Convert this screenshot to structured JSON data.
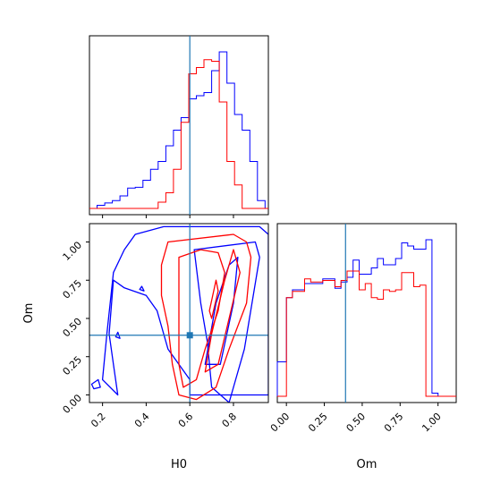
{
  "chart_data": [
    {
      "type": "histogram",
      "panel": "H0-marginal",
      "xlim": [
        0.14,
        0.96
      ],
      "truth": 0.6,
      "bin_edges": [
        0.14,
        0.175,
        0.21,
        0.245,
        0.28,
        0.315,
        0.35,
        0.385,
        0.42,
        0.455,
        0.49,
        0.525,
        0.56,
        0.595,
        0.63,
        0.665,
        0.7,
        0.735,
        0.77,
        0.805,
        0.84,
        0.875,
        0.91,
        0.945,
        0.96
      ],
      "series": [
        {
          "color": "#0000ff",
          "counts": [
            0,
            0.02,
            0.035,
            0.05,
            0.08,
            0.13,
            0.135,
            0.18,
            0.25,
            0.3,
            0.4,
            0.5,
            0.58,
            0.7,
            0.72,
            0.74,
            0.88,
            1.0,
            0.8,
            0.6,
            0.5,
            0.3,
            0.05,
            0.0
          ]
        },
        {
          "color": "#ff0000",
          "counts": [
            0,
            0,
            0,
            0,
            0,
            0,
            0,
            0,
            0,
            0.04,
            0.1,
            0.25,
            0.55,
            0.86,
            0.9,
            0.95,
            0.94,
            0.68,
            0.3,
            0.15,
            0,
            0,
            0,
            0
          ]
        }
      ]
    },
    {
      "type": "contour",
      "panel": "H0-Om-joint",
      "xlim": [
        0.14,
        0.96
      ],
      "ylim": [
        -0.05,
        1.12
      ],
      "x_ticks": [
        "0.2",
        "0.4",
        "0.6",
        "0.8"
      ],
      "y_ticks": [
        "0.00",
        "0.25",
        "0.50",
        "0.75",
        "1.00"
      ],
      "xlabel": "H0",
      "ylabel": "Om",
      "truth": {
        "H0": 0.6,
        "Om": 0.39
      },
      "series": [
        {
          "color": "#0000ff",
          "contours": [
            [
              [
                0.35,
                1.05
              ],
              [
                0.48,
                1.1
              ],
              [
                0.92,
                1.1
              ],
              [
                0.96,
                1.05
              ],
              [
                0.96,
                0.0
              ],
              [
                0.6,
                0.0
              ],
              [
                0.6,
                0.1
              ],
              [
                0.5,
                0.3
              ],
              [
                0.45,
                0.55
              ],
              [
                0.4,
                0.65
              ],
              [
                0.3,
                0.7
              ],
              [
                0.25,
                0.75
              ],
              [
                0.23,
                0.4
              ],
              [
                0.25,
                0.2
              ],
              [
                0.27,
                0.0
              ],
              [
                0.2,
                0.1
              ],
              [
                0.22,
                0.4
              ],
              [
                0.25,
                0.8
              ],
              [
                0.3,
                0.95
              ],
              [
                0.35,
                1.05
              ]
            ],
            [
              [
                0.62,
                0.95
              ],
              [
                0.9,
                1.0
              ],
              [
                0.92,
                0.9
              ],
              [
                0.85,
                0.3
              ],
              [
                0.78,
                -0.05
              ],
              [
                0.7,
                0.05
              ],
              [
                0.68,
                0.35
              ],
              [
                0.65,
                0.6
              ],
              [
                0.62,
                0.95
              ]
            ],
            [
              [
                0.67,
                0.2
              ],
              [
                0.72,
                0.6
              ],
              [
                0.78,
                0.85
              ],
              [
                0.82,
                0.9
              ],
              [
                0.8,
                0.6
              ],
              [
                0.74,
                0.2
              ],
              [
                0.67,
                0.2
              ]
            ],
            [
              [
                0.15,
                0.07
              ],
              [
                0.18,
                0.1
              ],
              [
                0.19,
                0.05
              ],
              [
                0.16,
                0.04
              ],
              [
                0.15,
                0.07
              ]
            ],
            [
              [
                0.26,
                0.38
              ],
              [
                0.27,
                0.41
              ],
              [
                0.28,
                0.37
              ],
              [
                0.26,
                0.38
              ]
            ],
            [
              [
                0.37,
                0.69
              ],
              [
                0.38,
                0.71
              ],
              [
                0.39,
                0.68
              ],
              [
                0.37,
                0.69
              ]
            ]
          ]
        },
        {
          "color": "#ff0000",
          "contours": [
            [
              [
                0.5,
                1.0
              ],
              [
                0.8,
                1.05
              ],
              [
                0.86,
                1.0
              ],
              [
                0.88,
                0.9
              ],
              [
                0.86,
                0.6
              ],
              [
                0.78,
                0.3
              ],
              [
                0.72,
                0.05
              ],
              [
                0.63,
                -0.03
              ],
              [
                0.55,
                0.0
              ],
              [
                0.52,
                0.2
              ],
              [
                0.5,
                0.45
              ],
              [
                0.47,
                0.65
              ],
              [
                0.47,
                0.85
              ],
              [
                0.5,
                1.0
              ]
            ],
            [
              [
                0.55,
                0.9
              ],
              [
                0.65,
                0.95
              ],
              [
                0.73,
                0.93
              ],
              [
                0.76,
                0.8
              ],
              [
                0.73,
                0.55
              ],
              [
                0.67,
                0.3
              ],
              [
                0.63,
                0.1
              ],
              [
                0.57,
                0.05
              ],
              [
                0.55,
                0.2
              ],
              [
                0.55,
                0.5
              ],
              [
                0.55,
                0.9
              ]
            ],
            [
              [
                0.67,
                0.15
              ],
              [
                0.7,
                0.4
              ],
              [
                0.76,
                0.75
              ],
              [
                0.8,
                0.95
              ],
              [
                0.83,
                0.8
              ],
              [
                0.78,
                0.5
              ],
              [
                0.73,
                0.2
              ],
              [
                0.67,
                0.15
              ]
            ],
            [
              [
                0.69,
                0.55
              ],
              [
                0.72,
                0.75
              ],
              [
                0.73,
                0.68
              ],
              [
                0.7,
                0.5
              ],
              [
                0.69,
                0.55
              ]
            ]
          ]
        }
      ]
    },
    {
      "type": "histogram",
      "panel": "Om-marginal",
      "xlim": [
        -0.06,
        1.12
      ],
      "x_ticks": [
        "0.00",
        "0.25",
        "0.50",
        "0.75",
        "1.00"
      ],
      "xlabel": "Om",
      "truth": 0.39,
      "bin_edges": [
        -0.06,
        0.0,
        0.04,
        0.08,
        0.12,
        0.16,
        0.2,
        0.24,
        0.28,
        0.32,
        0.36,
        0.4,
        0.44,
        0.48,
        0.52,
        0.56,
        0.6,
        0.64,
        0.68,
        0.72,
        0.76,
        0.8,
        0.84,
        0.88,
        0.92,
        0.96,
        1.0,
        1.12
      ],
      "series": [
        {
          "color": "#0000ff",
          "counts": [
            0.22,
            0.63,
            0.68,
            0.68,
            0.72,
            0.72,
            0.72,
            0.75,
            0.75,
            0.69,
            0.73,
            0.76,
            0.87,
            0.78,
            0.78,
            0.82,
            0.88,
            0.84,
            0.84,
            0.88,
            0.98,
            0.96,
            0.94,
            0.94,
            1.0,
            0.02,
            0.0
          ]
        },
        {
          "color": "#ff0000",
          "counts": [
            0.0,
            0.63,
            0.67,
            0.67,
            0.75,
            0.73,
            0.73,
            0.74,
            0.74,
            0.7,
            0.74,
            0.8,
            0.8,
            0.68,
            0.72,
            0.63,
            0.62,
            0.68,
            0.67,
            0.68,
            0.79,
            0.79,
            0.7,
            0.71,
            0.0,
            0.0,
            0.0
          ]
        }
      ]
    }
  ],
  "colors": {
    "truth": "#1f77b4"
  }
}
